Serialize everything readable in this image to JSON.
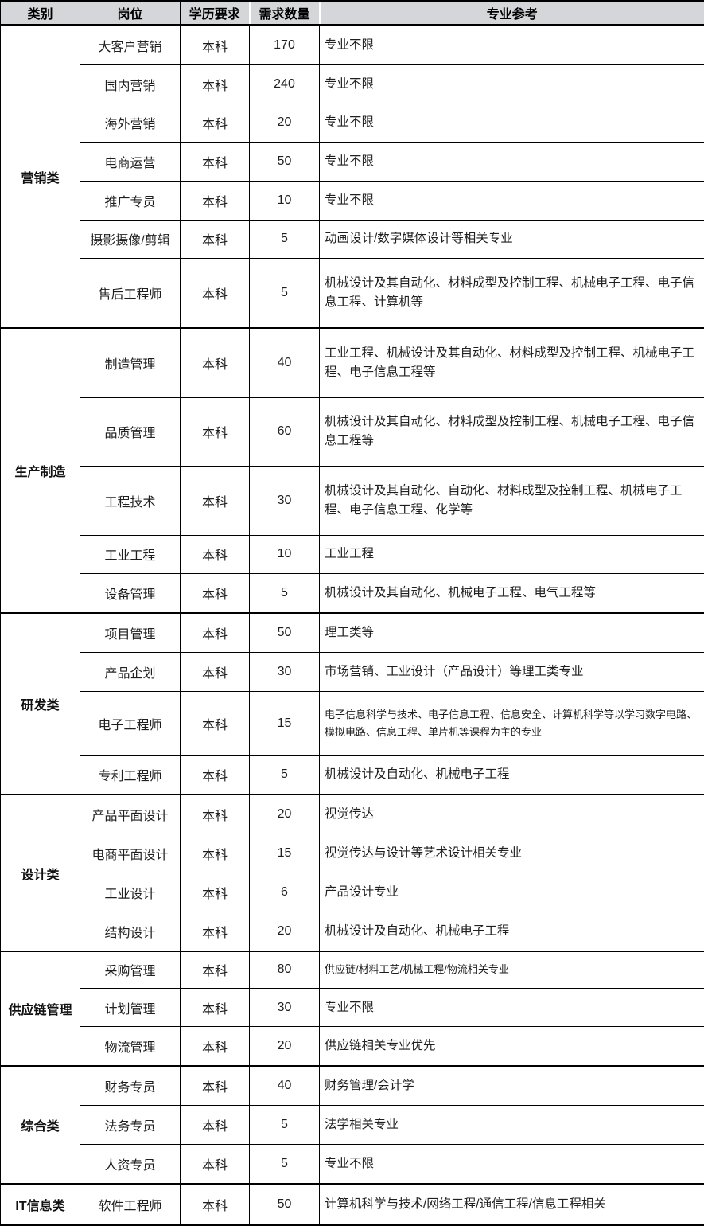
{
  "styles": {
    "header_bg": "#d4d6d9",
    "border_color": "#000000",
    "text_color": "#1f1f1f"
  },
  "table": {
    "headers": [
      "类别",
      "岗位",
      "学历要求",
      "需求数量",
      "专业参考"
    ],
    "groups": [
      {
        "category": "营销类",
        "rows": [
          {
            "position": "大客户营销",
            "education": "本科",
            "count": "170",
            "major": "专业不限"
          },
          {
            "position": "国内营销",
            "education": "本科",
            "count": "240",
            "major": "专业不限"
          },
          {
            "position": "海外营销",
            "education": "本科",
            "count": "20",
            "major": "专业不限"
          },
          {
            "position": "电商运营",
            "education": "本科",
            "count": "50",
            "major": "专业不限"
          },
          {
            "position": "推广专员",
            "education": "本科",
            "count": "10",
            "major": "专业不限"
          },
          {
            "position": "摄影摄像/剪辑",
            "education": "本科",
            "count": "5",
            "major": "动画设计/数字媒体设计等相关专业"
          },
          {
            "position": "售后工程师",
            "education": "本科",
            "count": "5",
            "major": "机械设计及其自动化、材料成型及控制工程、机械电子工程、电子信息工程、计算机等"
          }
        ]
      },
      {
        "category": "生产制造",
        "rows": [
          {
            "position": "制造管理",
            "education": "本科",
            "count": "40",
            "major": "工业工程、机械设计及其自动化、材料成型及控制工程、机械电子工程、电子信息工程等"
          },
          {
            "position": "品质管理",
            "education": "本科",
            "count": "60",
            "major": "机械设计及其自动化、材料成型及控制工程、机械电子工程、电子信息工程等"
          },
          {
            "position": "工程技术",
            "education": "本科",
            "count": "30",
            "major": "机械设计及其自动化、自动化、材料成型及控制工程、机械电子工程、电子信息工程、化学等"
          },
          {
            "position": "工业工程",
            "education": "本科",
            "count": "10",
            "major": "工业工程"
          },
          {
            "position": "设备管理",
            "education": "本科",
            "count": "5",
            "major": "机械设计及其自动化、机械电子工程、电气工程等"
          }
        ]
      },
      {
        "category": "研发类",
        "rows": [
          {
            "position": "项目管理",
            "education": "本科",
            "count": "50",
            "major": "理工类等"
          },
          {
            "position": "产品企划",
            "education": "本科",
            "count": "30",
            "major": "市场营销、工业设计（产品设计）等理工类专业"
          },
          {
            "position": "电子工程师",
            "education": "本科",
            "count": "15",
            "major": "电子信息科学与技术、电子信息工程、信息安全、计算机科学等以学习数字电路、模拟电路、信息工程、单片机等课程为主的专业",
            "major_small": true
          },
          {
            "position": "专利工程师",
            "education": "本科",
            "count": "5",
            "major": "机械设计及自动化、机械电子工程"
          }
        ]
      },
      {
        "category": "设计类",
        "rows": [
          {
            "position": "产品平面设计",
            "education": "本科",
            "count": "20",
            "major": "视觉传达"
          },
          {
            "position": "电商平面设计",
            "education": "本科",
            "count": "15",
            "major": "视觉传达与设计等艺术设计相关专业"
          },
          {
            "position": "工业设计",
            "education": "本科",
            "count": "6",
            "major": "产品设计专业"
          },
          {
            "position": "结构设计",
            "education": "本科",
            "count": "20",
            "major": "机械设计及自动化、机械电子工程"
          }
        ]
      },
      {
        "category": "供应链管理",
        "rows": [
          {
            "position": "采购管理",
            "education": "本科",
            "count": "80",
            "major": "供应链/材料工艺/机械工程/物流相关专业",
            "major_small": true
          },
          {
            "position": "计划管理",
            "education": "本科",
            "count": "30",
            "major": "专业不限"
          },
          {
            "position": "物流管理",
            "education": "本科",
            "count": "20",
            "major": "供应链相关专业优先"
          }
        ]
      },
      {
        "category": "综合类",
        "rows": [
          {
            "position": "财务专员",
            "education": "本科",
            "count": "40",
            "major": "财务管理/会计学"
          },
          {
            "position": "法务专员",
            "education": "本科",
            "count": "5",
            "major": "法学相关专业"
          },
          {
            "position": "人资专员",
            "education": "本科",
            "count": "5",
            "major": "专业不限"
          }
        ]
      },
      {
        "category": "IT信息类",
        "rows": [
          {
            "position": "软件工程师",
            "education": "本科",
            "count": "50",
            "major": "计算机科学与技术/网络工程/通信工程/信息工程相关"
          }
        ]
      }
    ]
  }
}
